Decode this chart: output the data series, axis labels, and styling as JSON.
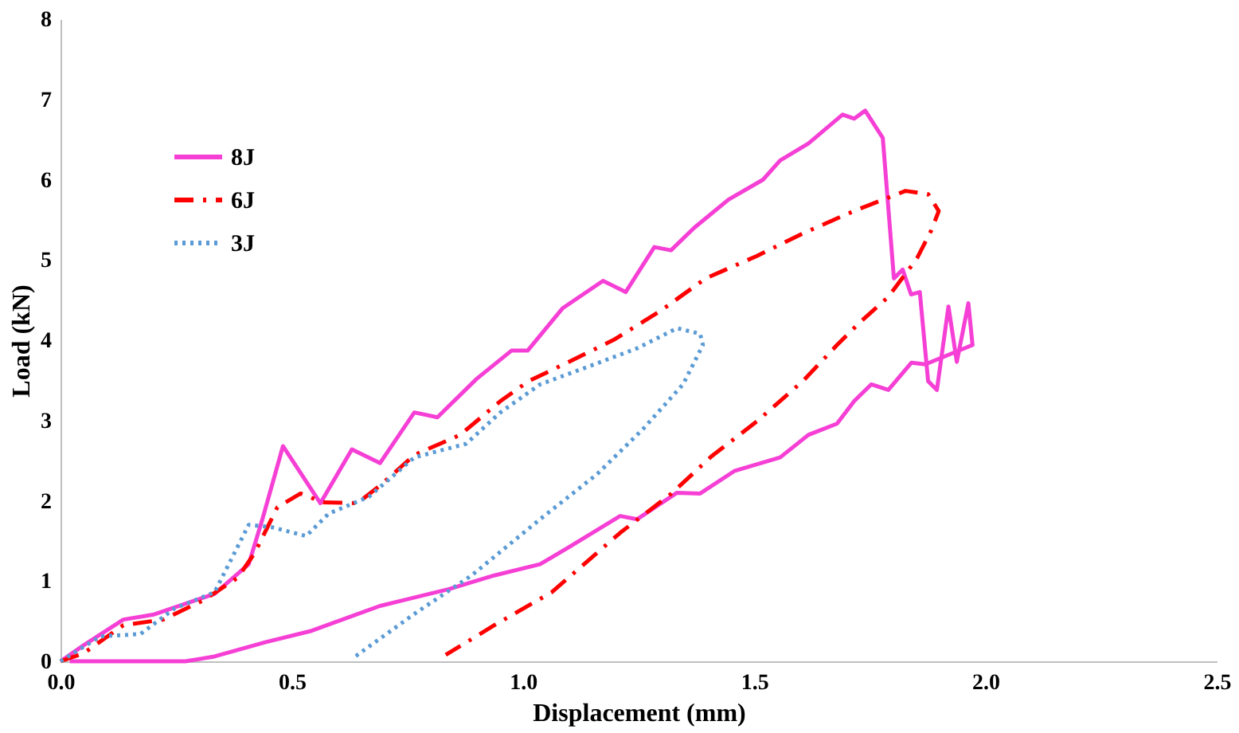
{
  "chart_data": {
    "type": "line",
    "xlabel": "Displacement (mm)",
    "ylabel": "Load (kN)",
    "xlim": [
      0,
      2.5
    ],
    "xticks": [
      {
        "value": 0,
        "label": "0.0"
      },
      0.5,
      {
        "value": 1,
        "label": "1.0"
      },
      1.5,
      {
        "value": 2,
        "label": "2.0"
      },
      2.5
    ],
    "ylim": [
      0,
      8
    ],
    "yticks": [
      0,
      1,
      2,
      3,
      4,
      5,
      6,
      7,
      8
    ],
    "grid": false,
    "legend": "top left",
    "marker": "none",
    "series": [
      {
        "name": "8J",
        "color": "#f53fd5",
        "line_style": "solid",
        "x": [
          0,
          0.05,
          0.136,
          0.2,
          0.333,
          0.407,
          0.437,
          0.481,
          0.562,
          0.63,
          0.691,
          0.765,
          0.815,
          0.9,
          0.975,
          1.01,
          1.086,
          1.173,
          1.222,
          1.284,
          1.32,
          1.37,
          1.444,
          1.519,
          1.556,
          1.617,
          1.691,
          1.716,
          1.74,
          1.778,
          1.802,
          1.821,
          1.839,
          1.858,
          1.876,
          1.895,
          1.92,
          1.938,
          1.963,
          1.972,
          1.87,
          1.84,
          1.79,
          1.753,
          1.716,
          1.679,
          1.617,
          1.556,
          1.457,
          1.383,
          1.333,
          1.247,
          1.21,
          1.099,
          1.037,
          0.938,
          0.84,
          0.691,
          0.543,
          0.444,
          0.333,
          0.27,
          0.02
        ],
        "values": [
          0,
          0.2,
          0.52,
          0.58,
          0.84,
          1.21,
          1.78,
          2.68,
          1.97,
          2.64,
          2.47,
          3.1,
          3.04,
          3.52,
          3.87,
          3.87,
          4.4,
          4.74,
          4.6,
          5.16,
          5.12,
          5.4,
          5.75,
          6.0,
          6.24,
          6.45,
          6.81,
          6.76,
          6.86,
          6.52,
          4.77,
          4.88,
          4.57,
          4.6,
          3.49,
          3.38,
          4.42,
          3.73,
          4.46,
          3.94,
          3.7,
          3.72,
          3.38,
          3.45,
          3.24,
          2.96,
          2.82,
          2.54,
          2.37,
          2.09,
          2.1,
          1.77,
          1.81,
          1.42,
          1.21,
          1.07,
          0.9,
          0.69,
          0.38,
          0.24,
          0.06,
          0,
          0
        ]
      },
      {
        "name": "6J",
        "color": "#ff0000",
        "line_style": "dashed",
        "x": [
          0,
          0.05,
          0.136,
          0.222,
          0.309,
          0.383,
          0.42,
          0.469,
          0.519,
          0.568,
          0.642,
          0.691,
          0.765,
          0.864,
          0.951,
          1.012,
          1.099,
          1.198,
          1.296,
          1.395,
          1.506,
          1.605,
          1.716,
          1.827,
          1.876,
          1.899,
          1.883,
          1.852,
          1.79,
          1.728,
          1.679,
          1.605,
          1.506,
          1.407,
          1.321,
          1.21,
          1.062,
          0.938,
          0.833
        ],
        "values": [
          0,
          0.1,
          0.45,
          0.52,
          0.76,
          1.04,
          1.35,
          1.92,
          2.09,
          1.98,
          1.97,
          2.19,
          2.57,
          2.82,
          3.24,
          3.49,
          3.73,
          4.01,
          4.36,
          4.77,
          5.05,
          5.33,
          5.61,
          5.86,
          5.82,
          5.61,
          5.37,
          5.02,
          4.54,
          4.22,
          3.94,
          3.49,
          2.99,
          2.55,
          2.09,
          1.6,
          0.86,
          0.45,
          0.08
        ]
      },
      {
        "name": "3J",
        "color": "#5b9bd5",
        "line_style": "dotted",
        "x": [
          0,
          0.086,
          0.173,
          0.247,
          0.333,
          0.37,
          0.407,
          0.457,
          0.531,
          0.58,
          0.667,
          0.765,
          0.877,
          0.951,
          1.037,
          1.136,
          1.247,
          1.333,
          1.383,
          1.389,
          1.346,
          1.259,
          1.16,
          1.037,
          0.889,
          0.765,
          0.63
        ],
        "values": [
          0,
          0.31,
          0.34,
          0.66,
          0.86,
          1.28,
          1.7,
          1.67,
          1.56,
          1.84,
          2.05,
          2.54,
          2.71,
          3.1,
          3.45,
          3.66,
          3.9,
          4.15,
          4.08,
          3.94,
          3.45,
          2.89,
          2.33,
          1.77,
          1.07,
          0.59,
          0.03
        ]
      }
    ]
  }
}
